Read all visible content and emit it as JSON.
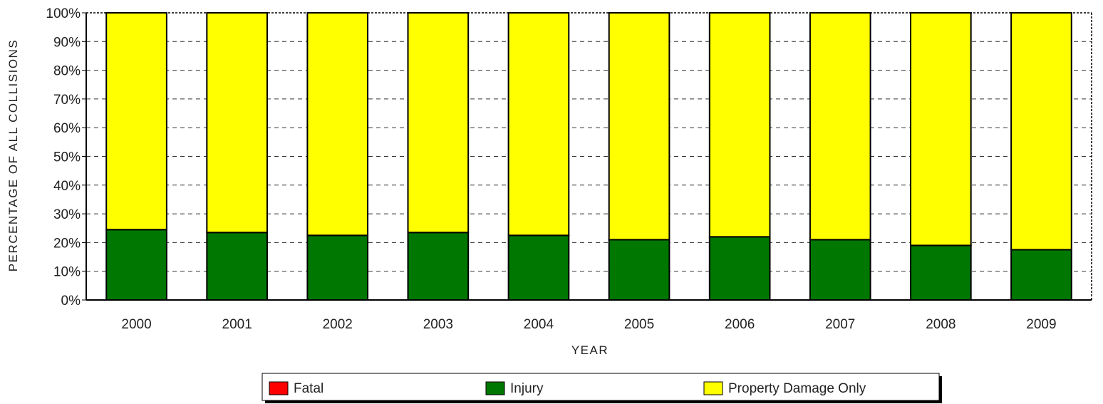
{
  "chart_data": {
    "type": "bar",
    "stacked": true,
    "title": "",
    "xlabel": "YEAR",
    "ylabel": "PERCENTAGE OF ALL COLLISIONS",
    "ylim": [
      0,
      100
    ],
    "y_ticks": [
      "0%",
      "10%",
      "20%",
      "30%",
      "40%",
      "50%",
      "60%",
      "70%",
      "80%",
      "90%",
      "100%"
    ],
    "grid": "dashed horizontal",
    "categories": [
      "2000",
      "2001",
      "2002",
      "2003",
      "2004",
      "2005",
      "2006",
      "2007",
      "2008",
      "2009"
    ],
    "series": [
      {
        "name": "Fatal",
        "color": "#ff0000",
        "values": [
          0,
          0,
          0,
          0,
          0,
          0,
          0,
          0,
          0,
          0
        ]
      },
      {
        "name": "Injury",
        "color": "#007700",
        "values": [
          24.5,
          23.5,
          22.5,
          23.5,
          22.5,
          21,
          22,
          21,
          19,
          17.5
        ]
      },
      {
        "name": "Property Damage Only",
        "color": "#ffff00",
        "values": [
          75.5,
          76.5,
          77.5,
          76.5,
          77.5,
          79,
          78,
          79,
          81,
          82.5
        ]
      }
    ],
    "legend_position": "bottom"
  }
}
